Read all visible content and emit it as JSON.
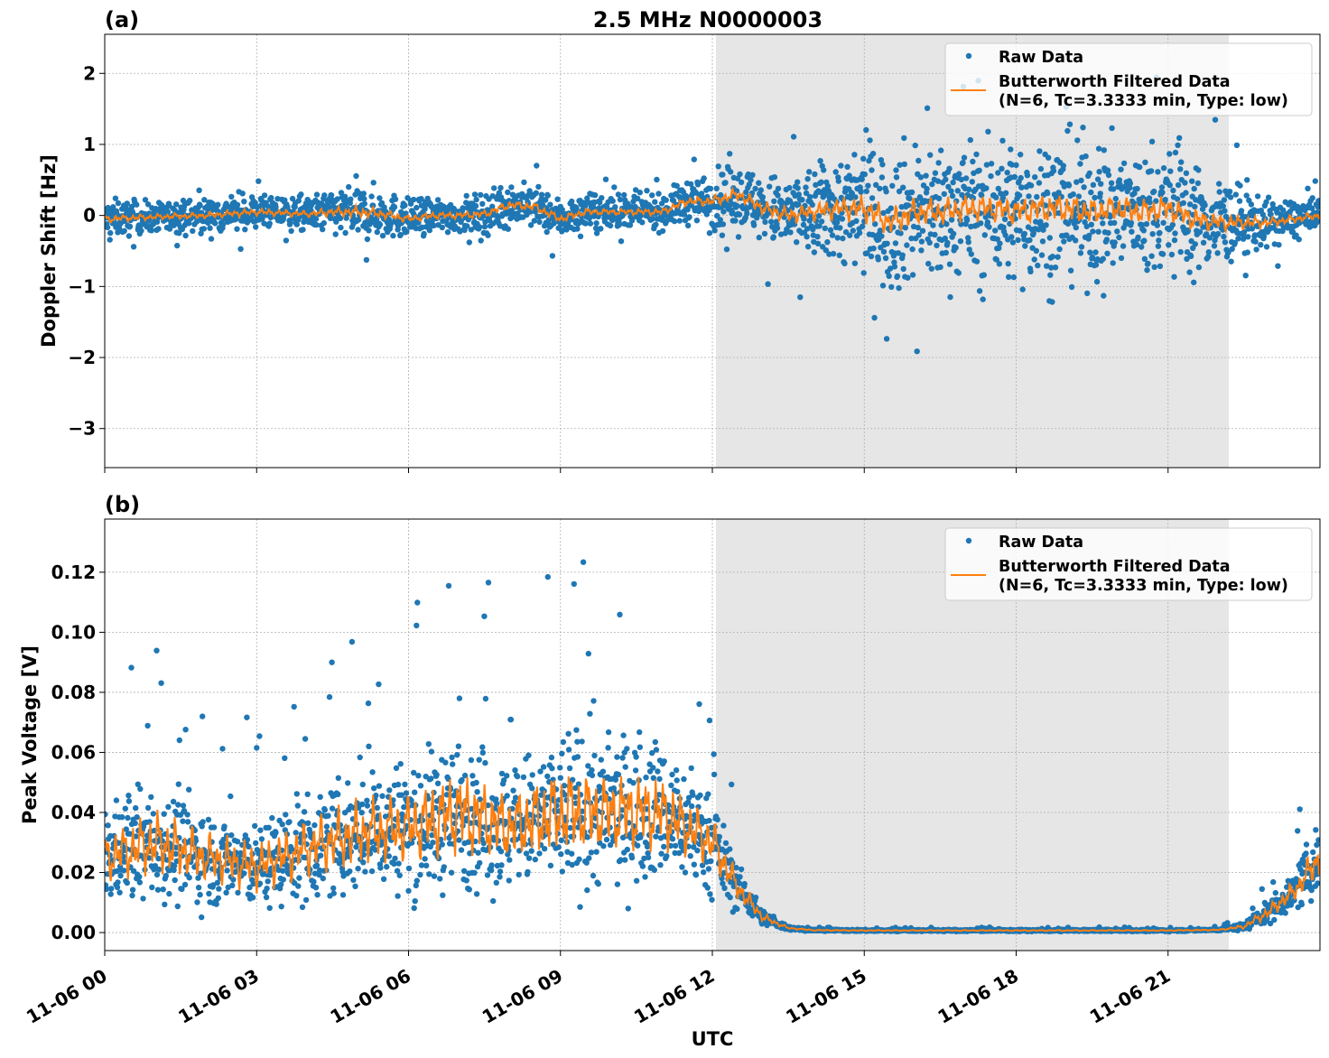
{
  "title": "2.5 MHz N0000003",
  "xlabel": "UTC",
  "colors": {
    "raw": "#1f77b4",
    "filtered": "#ff7f0e",
    "shade": "#e6e6e6"
  },
  "legend": {
    "raw": "Raw Data",
    "filtered_line1": "Butterworth Filtered Data",
    "filtered_line2": "(N=6, Tc=3.3333 min, Type: low)",
    "placement": "upper-right"
  },
  "chart_data": [
    {
      "type": "scatter+line",
      "panel_label": "(a)",
      "ylabel": "Doppler Shift [Hz]",
      "xlim_hours": [
        0,
        24
      ],
      "ylim": [
        -3.55,
        2.55
      ],
      "grid": true,
      "x_tick_labels": [
        "11-06 00",
        "11-06 03",
        "11-06 06",
        "11-06 09",
        "11-06 12",
        "11-06 15",
        "11-06 18",
        "11-06 21"
      ],
      "y_ticks": [
        2,
        1,
        0,
        -1,
        -2,
        -3
      ],
      "y_tick_labels": [
        "2",
        "1",
        "0",
        "−1",
        "−2",
        "−3"
      ],
      "shaded_interval_hours": [
        12.07,
        22.2
      ],
      "filtered_hours": [
        0,
        1,
        2,
        3,
        4,
        4.5,
        5,
        5.5,
        6,
        6.5,
        7,
        7.5,
        8,
        8.5,
        9,
        9.5,
        10,
        10.5,
        11,
        11.5,
        12,
        12.5,
        13,
        13.5,
        14,
        14.5,
        15,
        15.5,
        16,
        16.5,
        17,
        17.5,
        18,
        18.5,
        19,
        19.5,
        20,
        20.5,
        21,
        21.5,
        22,
        22.5,
        23,
        23.5,
        24
      ],
      "filtered_values": [
        -0.05,
        -0.02,
        0.0,
        0.05,
        0.02,
        0.05,
        0.05,
        0.02,
        -0.05,
        0.0,
        0.0,
        0.02,
        0.15,
        0.12,
        -0.05,
        0.05,
        0.05,
        0.05,
        0.05,
        0.2,
        0.2,
        0.3,
        0.1,
        0.0,
        0.05,
        0.1,
        0.1,
        -0.1,
        0.05,
        0.05,
        0.1,
        0.1,
        0.05,
        0.1,
        0.1,
        0.05,
        0.1,
        0.05,
        0.1,
        -0.05,
        -0.1,
        -0.1,
        -0.1,
        -0.05,
        0.0
      ],
      "raw_spread_hours": [
        0,
        1,
        2,
        3,
        4,
        5,
        6,
        7,
        8,
        9,
        10,
        11,
        12,
        13,
        14,
        15,
        16,
        17,
        18,
        19,
        20,
        21,
        22,
        23,
        24
      ],
      "raw_spread": [
        0.35,
        0.25,
        0.3,
        0.3,
        0.3,
        0.5,
        0.35,
        0.3,
        0.4,
        0.35,
        0.3,
        0.3,
        0.5,
        0.6,
        0.8,
        1.2,
        1.3,
        1.2,
        1.3,
        1.3,
        1.2,
        1.2,
        0.8,
        0.4,
        0.35
      ]
    },
    {
      "type": "scatter+line",
      "panel_label": "(b)",
      "ylabel": "Peak Voltage [V]",
      "xlim_hours": [
        0,
        24
      ],
      "ylim": [
        -0.006,
        0.1377
      ],
      "grid": true,
      "x_tick_labels": [
        "11-06 00",
        "11-06 03",
        "11-06 06",
        "11-06 09",
        "11-06 12",
        "11-06 15",
        "11-06 18",
        "11-06 21"
      ],
      "y_ticks": [
        0.0,
        0.02,
        0.04,
        0.06,
        0.08,
        0.1,
        0.12
      ],
      "y_tick_labels": [
        "0.00",
        "0.02",
        "0.04",
        "0.06",
        "0.08",
        "0.10",
        "0.12"
      ],
      "shaded_interval_hours": [
        12.07,
        22.2
      ],
      "filtered_hours": [
        0,
        1,
        2,
        3,
        4,
        5,
        6,
        7,
        8,
        9,
        10,
        11,
        11.5,
        12,
        12.5,
        13,
        13.5,
        14,
        15,
        16,
        17,
        18,
        19,
        20,
        21,
        22,
        22.5,
        23,
        23.5,
        24
      ],
      "filtered_values": [
        0.025,
        0.03,
        0.025,
        0.022,
        0.028,
        0.033,
        0.035,
        0.04,
        0.035,
        0.04,
        0.04,
        0.04,
        0.035,
        0.03,
        0.015,
        0.005,
        0.0015,
        0.0008,
        0.0007,
        0.0007,
        0.0007,
        0.0007,
        0.0007,
        0.0007,
        0.0007,
        0.0009,
        0.002,
        0.007,
        0.014,
        0.025
      ],
      "raw_spread_hours": [
        0,
        1,
        2,
        3,
        4,
        5,
        6,
        7,
        8,
        9,
        10,
        11,
        12,
        12.5,
        13,
        13.5,
        14,
        22,
        22.5,
        23,
        23.5,
        24
      ],
      "raw_spread": [
        0.025,
        0.03,
        0.025,
        0.022,
        0.028,
        0.03,
        0.035,
        0.04,
        0.035,
        0.04,
        0.04,
        0.035,
        0.025,
        0.012,
        0.004,
        0.001,
        0.0005,
        0.0005,
        0.002,
        0.006,
        0.01,
        0.02
      ]
    }
  ]
}
